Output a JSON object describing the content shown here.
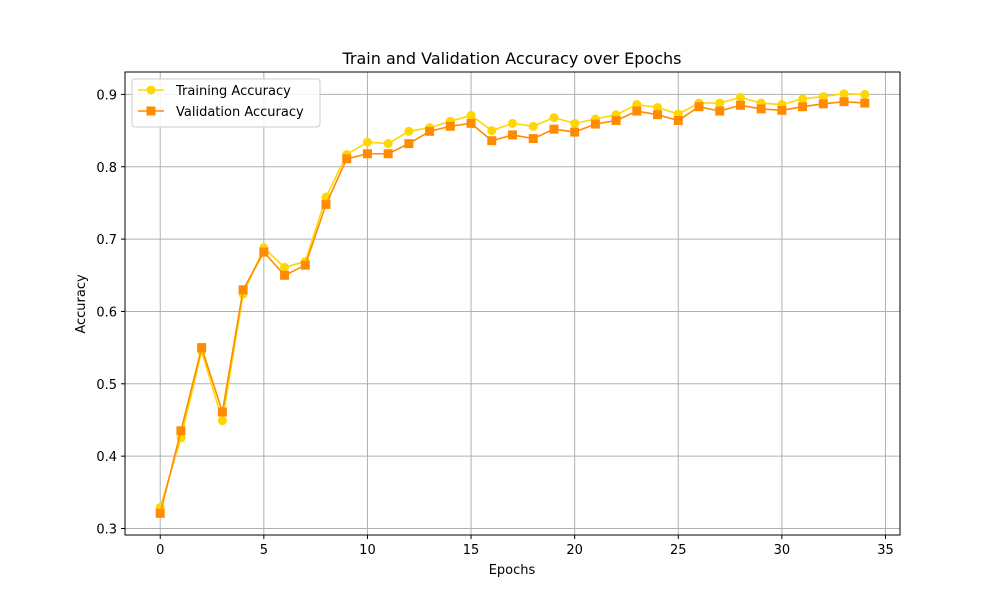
{
  "chart_data": {
    "type": "line",
    "title": "Train and Validation Accuracy over Epochs",
    "xlabel": "Epochs",
    "ylabel": "Accuracy",
    "xlim": [
      -1.7,
      35.7
    ],
    "ylim": [
      0.291,
      0.931
    ],
    "xticks": [
      0,
      5,
      10,
      15,
      20,
      25,
      30,
      35
    ],
    "yticks": [
      0.3,
      0.4,
      0.5,
      0.6,
      0.7,
      0.8,
      0.9
    ],
    "grid": true,
    "legend_position": "top-left",
    "x": [
      0,
      1,
      2,
      3,
      4,
      5,
      6,
      7,
      8,
      9,
      10,
      11,
      12,
      13,
      14,
      15,
      16,
      17,
      18,
      19,
      20,
      21,
      22,
      23,
      24,
      25,
      26,
      27,
      28,
      29,
      30,
      31,
      32,
      33,
      34
    ],
    "series": [
      {
        "name": "Training Accuracy",
        "color": "#ffd700",
        "marker": "circle",
        "values": [
          0.329,
          0.425,
          0.545,
          0.449,
          0.624,
          0.688,
          0.661,
          0.669,
          0.758,
          0.817,
          0.834,
          0.832,
          0.849,
          0.854,
          0.863,
          0.871,
          0.85,
          0.86,
          0.856,
          0.868,
          0.86,
          0.866,
          0.872,
          0.886,
          0.882,
          0.873,
          0.888,
          0.888,
          0.896,
          0.888,
          0.886,
          0.894,
          0.897,
          0.901,
          0.9
        ]
      },
      {
        "name": "Validation Accuracy",
        "color": "#ff8c00",
        "marker": "square",
        "values": [
          0.321,
          0.435,
          0.55,
          0.461,
          0.63,
          0.682,
          0.65,
          0.664,
          0.748,
          0.811,
          0.818,
          0.818,
          0.832,
          0.849,
          0.856,
          0.86,
          0.836,
          0.844,
          0.839,
          0.852,
          0.848,
          0.859,
          0.864,
          0.877,
          0.872,
          0.864,
          0.883,
          0.877,
          0.885,
          0.88,
          0.878,
          0.883,
          0.887,
          0.89,
          0.888
        ]
      }
    ]
  }
}
